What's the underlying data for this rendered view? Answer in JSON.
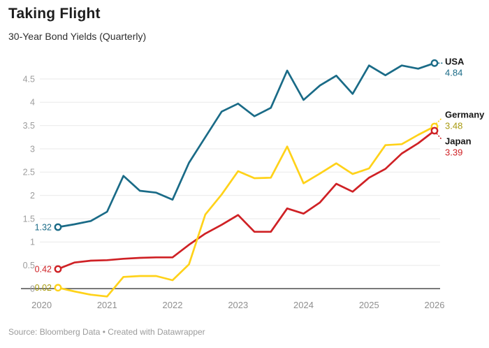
{
  "header": {
    "title": "Taking Flight",
    "subtitle": "30-Year Bond Yields (Quarterly)"
  },
  "footer": {
    "source": "Source: Bloomberg Data • Created with Datawrapper"
  },
  "chart_data": {
    "type": "line",
    "title": "Taking Flight",
    "subtitle": "30-Year Bond Yields (Quarterly)",
    "x": [
      "2020 Q2",
      "2020 Q3",
      "2020 Q4",
      "2021 Q1",
      "2021 Q2",
      "2021 Q3",
      "2021 Q4",
      "2022 Q1",
      "2022 Q2",
      "2022 Q3",
      "2022 Q4",
      "2023 Q1",
      "2023 Q2",
      "2023 Q3",
      "2023 Q4",
      "2024 Q1",
      "2024 Q2",
      "2024 Q3",
      "2024 Q4",
      "2025 Q1",
      "2025 Q2",
      "2025 Q3",
      "2025 Q4",
      "2026 Q1"
    ],
    "x_axis_tick_labels": [
      "2020",
      "2021",
      "2022",
      "2023",
      "2024",
      "2025",
      "2026"
    ],
    "y_ticks": [
      0,
      0.5,
      1,
      1.5,
      2,
      2.5,
      3,
      3.5,
      4,
      4.5
    ],
    "y_axis_tick_labels": [
      "0",
      "0.5",
      "1",
      "1.5",
      "2",
      "2.5",
      "3",
      "3.5",
      "4",
      "4.5"
    ],
    "ylim": [
      -0.25,
      4.95
    ],
    "grid": "horizontal",
    "legend_position": "right-edge-direct-labels",
    "series": [
      {
        "name": "USA",
        "color": "#1a6b87",
        "label_color": "#1a6b87",
        "start_label": "1.32",
        "end_label": "4.84",
        "values": [
          1.32,
          1.38,
          1.45,
          1.65,
          2.42,
          2.1,
          2.06,
          1.91,
          2.7,
          3.25,
          3.8,
          3.97,
          3.7,
          3.88,
          4.68,
          4.05,
          4.36,
          4.57,
          4.18,
          4.79,
          4.58,
          4.79,
          4.72,
          4.84
        ]
      },
      {
        "name": "Germany",
        "color": "#ffd219",
        "label_color": "#a89a10",
        "start_label": "0.02",
        "end_label": "3.48",
        "values": [
          0.02,
          -0.06,
          -0.13,
          -0.17,
          0.25,
          0.27,
          0.27,
          0.18,
          0.52,
          1.59,
          2.02,
          2.52,
          2.37,
          2.38,
          3.05,
          2.26,
          2.47,
          2.69,
          2.46,
          2.58,
          3.08,
          3.1,
          3.3,
          3.48
        ]
      },
      {
        "name": "Japan",
        "color": "#cf2125",
        "label_color": "#cf2125",
        "start_label": "0.42",
        "end_label": "3.39",
        "values": [
          0.42,
          0.56,
          0.6,
          0.61,
          0.64,
          0.66,
          0.67,
          0.67,
          0.94,
          1.18,
          1.37,
          1.58,
          1.22,
          1.22,
          1.72,
          1.61,
          1.85,
          2.25,
          2.08,
          2.38,
          2.57,
          2.9,
          3.12,
          3.39
        ]
      }
    ]
  }
}
